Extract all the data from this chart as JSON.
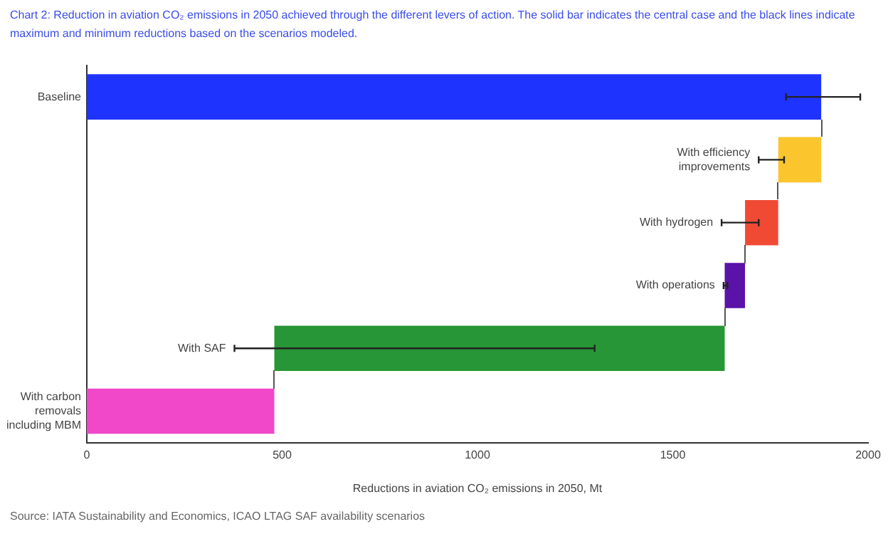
{
  "chart_data": {
    "type": "bar",
    "orientation": "horizontal",
    "title": "Chart 2: Reduction in aviation CO₂ emissions in 2050 achieved through the different levers of action. The solid bar indicates the central case and the black lines indicate maximum and minimum reductions based on the scenarios modeled.",
    "xlabel": "Reductions in aviation CO₂ emissions in 2050, Mt",
    "annotations": [
      "Source: IATA Sustainability and Economics, ICAO LTAG SAF availability scenarios"
    ],
    "categories": [
      "Baseline",
      "With efficiency improvements",
      "With hydrogen",
      "With operations",
      "With SAF",
      "With carbon removals including MBM"
    ],
    "values": [
      1880,
      110,
      85,
      52,
      1153,
      480
    ],
    "base": [
      0,
      1770,
      1685,
      1633,
      480,
      0
    ],
    "colors": [
      "#1f33ff",
      "#fbc52e",
      "#f04a35",
      "#5b12a8",
      "#279636",
      "#f048c8"
    ],
    "errors": [
      [
        1790,
        1980
      ],
      [
        1720,
        1785
      ],
      [
        1625,
        1720
      ],
      [
        1630,
        1640
      ],
      [
        378,
        1300
      ],
      null
    ],
    "xlim": [
      0,
      2000
    ],
    "xticks": [
      0,
      500,
      1000,
      1500,
      2000
    ],
    "grid": false,
    "legend": false
  }
}
